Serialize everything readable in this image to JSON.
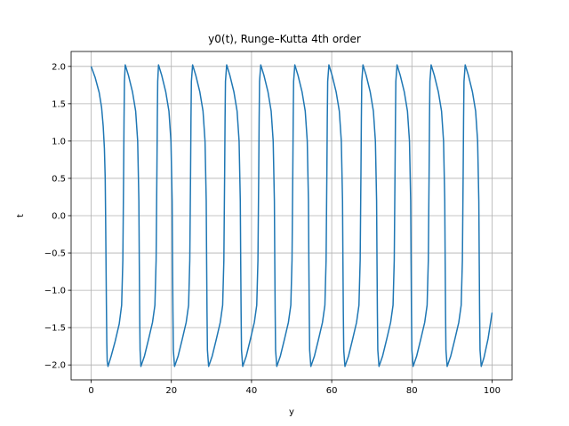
{
  "chart_data": {
    "type": "line",
    "title": "y0(t), Runge–Kutta 4th order",
    "xlabel": "y",
    "ylabel": "t",
    "xlim": [
      -5,
      105
    ],
    "ylim": [
      -2.2,
      2.2
    ],
    "xticks": [
      0,
      20,
      40,
      60,
      80,
      100
    ],
    "xtick_labels": [
      "0",
      "20",
      "40",
      "60",
      "80",
      "100"
    ],
    "yticks": [
      -2.0,
      -1.5,
      -1.0,
      -0.5,
      0.0,
      0.5,
      1.0,
      1.5,
      2.0
    ],
    "ytick_labels": [
      "−2.0",
      "−1.5",
      "−1.0",
      "−0.5",
      "0.0",
      "0.5",
      "1.0",
      "1.5",
      "2.0"
    ],
    "grid": true,
    "series": [
      {
        "color": "#1f77b4",
        "points": [
          [
            0.0,
            2.0
          ],
          [
            1.0,
            1.85
          ],
          [
            2.0,
            1.65
          ],
          [
            2.6,
            1.45
          ],
          [
            3.0,
            1.2
          ],
          [
            3.3,
            0.9
          ],
          [
            3.5,
            0.5
          ],
          [
            3.6,
            0.0
          ],
          [
            3.7,
            -0.6
          ],
          [
            3.8,
            -1.2
          ],
          [
            3.9,
            -1.7
          ],
          [
            4.0,
            -1.95
          ],
          [
            4.2,
            -2.02
          ],
          [
            5.0,
            -1.88
          ],
          [
            6.0,
            -1.68
          ],
          [
            7.0,
            -1.45
          ],
          [
            7.6,
            -1.2
          ],
          [
            7.9,
            -0.6
          ],
          [
            8.0,
            0.0
          ],
          [
            8.1,
            0.6
          ],
          [
            8.2,
            1.3
          ],
          [
            8.3,
            1.8
          ],
          [
            8.5,
            2.02
          ],
          [
            9.3,
            1.88
          ],
          [
            10.3,
            1.66
          ],
          [
            11.1,
            1.4
          ],
          [
            11.6,
            1.0
          ],
          [
            11.9,
            0.2
          ],
          [
            12.0,
            -0.6
          ],
          [
            12.1,
            -1.3
          ],
          [
            12.2,
            -1.8
          ],
          [
            12.4,
            -2.02
          ],
          [
            13.3,
            -1.88
          ],
          [
            14.3,
            -1.66
          ],
          [
            15.3,
            -1.43
          ],
          [
            15.9,
            -1.2
          ],
          [
            16.2,
            -0.6
          ],
          [
            16.3,
            0.0
          ],
          [
            16.4,
            0.6
          ],
          [
            16.5,
            1.3
          ],
          [
            16.6,
            1.8
          ],
          [
            16.8,
            2.02
          ],
          [
            17.6,
            1.88
          ],
          [
            18.6,
            1.66
          ],
          [
            19.4,
            1.4
          ],
          [
            19.9,
            1.0
          ],
          [
            20.2,
            0.2
          ],
          [
            20.3,
            -0.6
          ],
          [
            20.4,
            -1.3
          ],
          [
            20.5,
            -1.8
          ],
          [
            20.8,
            -2.02
          ],
          [
            21.7,
            -1.88
          ],
          [
            22.7,
            -1.66
          ],
          [
            23.7,
            -1.43
          ],
          [
            24.3,
            -1.2
          ],
          [
            24.6,
            -0.6
          ],
          [
            24.7,
            0.0
          ],
          [
            24.8,
            0.6
          ],
          [
            24.9,
            1.3
          ],
          [
            25.0,
            1.8
          ],
          [
            25.3,
            2.02
          ],
          [
            26.1,
            1.88
          ],
          [
            27.1,
            1.66
          ],
          [
            27.9,
            1.4
          ],
          [
            28.4,
            1.0
          ],
          [
            28.7,
            0.2
          ],
          [
            28.8,
            -0.6
          ],
          [
            28.9,
            -1.3
          ],
          [
            29.0,
            -1.8
          ],
          [
            29.3,
            -2.02
          ],
          [
            30.2,
            -1.88
          ],
          [
            31.2,
            -1.66
          ],
          [
            32.2,
            -1.43
          ],
          [
            32.8,
            -1.2
          ],
          [
            33.1,
            -0.6
          ],
          [
            33.2,
            0.0
          ],
          [
            33.3,
            0.6
          ],
          [
            33.4,
            1.3
          ],
          [
            33.5,
            1.8
          ],
          [
            33.8,
            2.02
          ],
          [
            34.6,
            1.88
          ],
          [
            35.6,
            1.66
          ],
          [
            36.4,
            1.4
          ],
          [
            36.9,
            1.0
          ],
          [
            37.2,
            0.2
          ],
          [
            37.3,
            -0.6
          ],
          [
            37.4,
            -1.3
          ],
          [
            37.5,
            -1.8
          ],
          [
            37.8,
            -2.02
          ],
          [
            38.7,
            -1.88
          ],
          [
            39.7,
            -1.66
          ],
          [
            40.7,
            -1.43
          ],
          [
            41.3,
            -1.2
          ],
          [
            41.6,
            -0.6
          ],
          [
            41.7,
            0.0
          ],
          [
            41.8,
            0.6
          ],
          [
            41.9,
            1.3
          ],
          [
            42.0,
            1.8
          ],
          [
            42.3,
            2.02
          ],
          [
            43.1,
            1.88
          ],
          [
            44.1,
            1.66
          ],
          [
            44.9,
            1.4
          ],
          [
            45.4,
            1.0
          ],
          [
            45.7,
            0.2
          ],
          [
            45.8,
            -0.6
          ],
          [
            45.9,
            -1.3
          ],
          [
            46.0,
            -1.8
          ],
          [
            46.3,
            -2.02
          ],
          [
            47.2,
            -1.88
          ],
          [
            48.2,
            -1.66
          ],
          [
            49.2,
            -1.43
          ],
          [
            49.8,
            -1.2
          ],
          [
            50.1,
            -0.6
          ],
          [
            50.2,
            0.0
          ],
          [
            50.3,
            0.6
          ],
          [
            50.4,
            1.3
          ],
          [
            50.5,
            1.8
          ],
          [
            50.8,
            2.02
          ],
          [
            51.6,
            1.88
          ],
          [
            52.6,
            1.66
          ],
          [
            53.4,
            1.4
          ],
          [
            53.9,
            1.0
          ],
          [
            54.2,
            0.2
          ],
          [
            54.3,
            -0.6
          ],
          [
            54.4,
            -1.3
          ],
          [
            54.5,
            -1.8
          ],
          [
            54.8,
            -2.02
          ],
          [
            55.7,
            -1.88
          ],
          [
            56.7,
            -1.66
          ],
          [
            57.7,
            -1.43
          ],
          [
            58.3,
            -1.2
          ],
          [
            58.6,
            -0.6
          ],
          [
            58.7,
            0.0
          ],
          [
            58.8,
            0.6
          ],
          [
            58.9,
            1.3
          ],
          [
            59.0,
            1.8
          ],
          [
            59.3,
            2.02
          ],
          [
            60.1,
            1.88
          ],
          [
            61.1,
            1.66
          ],
          [
            61.9,
            1.4
          ],
          [
            62.4,
            1.0
          ],
          [
            62.7,
            0.2
          ],
          [
            62.8,
            -0.6
          ],
          [
            62.9,
            -1.3
          ],
          [
            63.0,
            -1.8
          ],
          [
            63.3,
            -2.02
          ],
          [
            64.2,
            -1.88
          ],
          [
            65.2,
            -1.66
          ],
          [
            66.2,
            -1.43
          ],
          [
            66.8,
            -1.2
          ],
          [
            67.1,
            -0.6
          ],
          [
            67.2,
            0.0
          ],
          [
            67.3,
            0.6
          ],
          [
            67.4,
            1.3
          ],
          [
            67.5,
            1.8
          ],
          [
            67.8,
            2.02
          ],
          [
            68.6,
            1.88
          ],
          [
            69.6,
            1.66
          ],
          [
            70.4,
            1.4
          ],
          [
            70.9,
            1.0
          ],
          [
            71.2,
            0.2
          ],
          [
            71.3,
            -0.6
          ],
          [
            71.4,
            -1.3
          ],
          [
            71.5,
            -1.8
          ],
          [
            71.8,
            -2.02
          ],
          [
            72.7,
            -1.88
          ],
          [
            73.7,
            -1.66
          ],
          [
            74.7,
            -1.43
          ],
          [
            75.3,
            -1.2
          ],
          [
            75.6,
            -0.6
          ],
          [
            75.7,
            0.0
          ],
          [
            75.8,
            0.6
          ],
          [
            75.9,
            1.3
          ],
          [
            76.0,
            1.8
          ],
          [
            76.3,
            2.02
          ],
          [
            77.1,
            1.88
          ],
          [
            78.1,
            1.66
          ],
          [
            78.9,
            1.4
          ],
          [
            79.4,
            1.0
          ],
          [
            79.7,
            0.2
          ],
          [
            79.8,
            -0.6
          ],
          [
            79.9,
            -1.3
          ],
          [
            80.0,
            -1.8
          ],
          [
            80.3,
            -2.02
          ],
          [
            81.2,
            -1.88
          ],
          [
            82.2,
            -1.66
          ],
          [
            83.2,
            -1.43
          ],
          [
            83.8,
            -1.2
          ],
          [
            84.1,
            -0.6
          ],
          [
            84.2,
            0.0
          ],
          [
            84.3,
            0.6
          ],
          [
            84.4,
            1.3
          ],
          [
            84.5,
            1.8
          ],
          [
            84.8,
            2.02
          ],
          [
            85.6,
            1.88
          ],
          [
            86.6,
            1.66
          ],
          [
            87.4,
            1.4
          ],
          [
            87.9,
            1.0
          ],
          [
            88.2,
            0.2
          ],
          [
            88.3,
            -0.6
          ],
          [
            88.4,
            -1.3
          ],
          [
            88.5,
            -1.8
          ],
          [
            88.8,
            -2.02
          ],
          [
            89.7,
            -1.88
          ],
          [
            90.7,
            -1.66
          ],
          [
            91.7,
            -1.43
          ],
          [
            92.3,
            -1.2
          ],
          [
            92.6,
            -0.6
          ],
          [
            92.7,
            0.0
          ],
          [
            92.8,
            0.6
          ],
          [
            92.9,
            1.3
          ],
          [
            93.0,
            1.8
          ],
          [
            93.3,
            2.02
          ],
          [
            94.1,
            1.88
          ],
          [
            95.1,
            1.66
          ],
          [
            95.9,
            1.4
          ],
          [
            96.4,
            1.0
          ],
          [
            96.7,
            0.2
          ],
          [
            96.8,
            -0.6
          ],
          [
            96.9,
            -1.3
          ],
          [
            97.0,
            -1.8
          ],
          [
            97.3,
            -2.02
          ],
          [
            98.0,
            -1.9
          ],
          [
            99.0,
            -1.65
          ],
          [
            100.0,
            -1.3
          ]
        ]
      }
    ]
  }
}
